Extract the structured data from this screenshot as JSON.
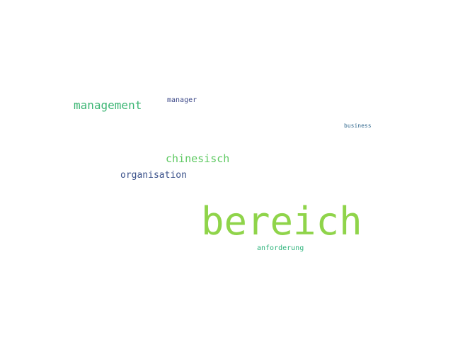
{
  "words": [
    {
      "key": "bereich",
      "text": "bereich",
      "color": "#8fd44a"
    },
    {
      "key": "management",
      "text": "management",
      "color": "#3bb573"
    },
    {
      "key": "chinesisch",
      "text": "chinesisch",
      "color": "#5ec962"
    },
    {
      "key": "organisation",
      "text": "organisation",
      "color": "#3b528b"
    },
    {
      "key": "manager",
      "text": "manager",
      "color": "#3e4a89"
    },
    {
      "key": "business",
      "text": "business",
      "color": "#31688e"
    },
    {
      "key": "anforderung",
      "text": "anforderung",
      "color": "#2fb47c"
    }
  ]
}
